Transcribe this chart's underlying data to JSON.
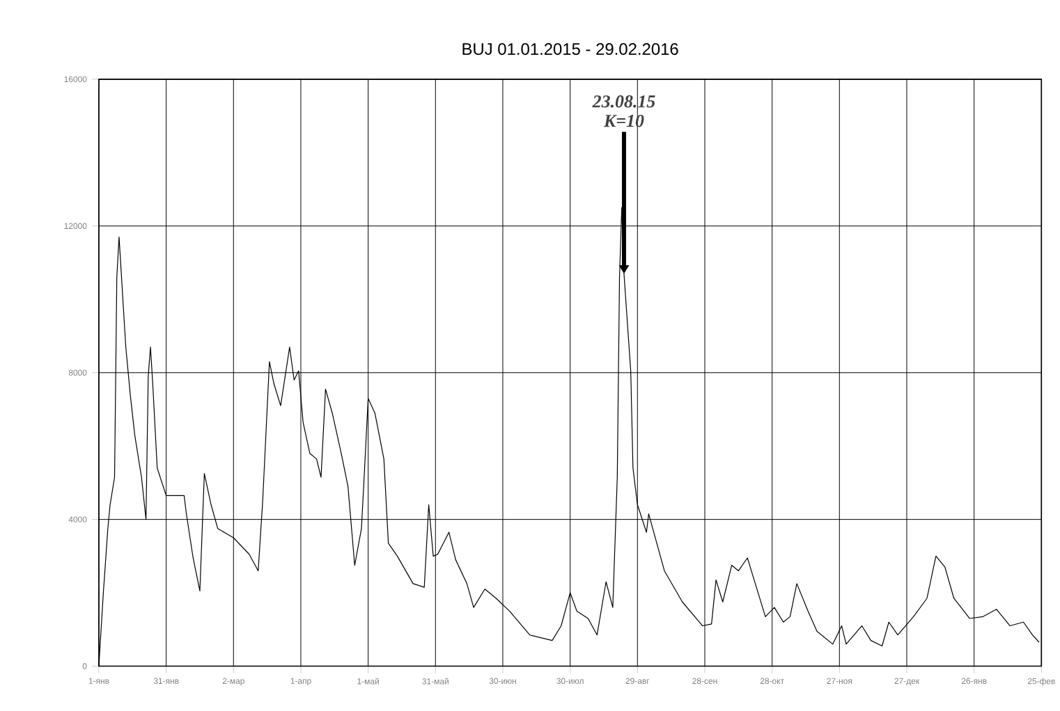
{
  "chart_data": {
    "type": "line",
    "title": "BUJ    01.01.2015 - 29.02.2016",
    "x": [
      "2015-01-01",
      "2015-01-03",
      "2015-01-05",
      "2015-01-06",
      "2015-01-08",
      "2015-01-09",
      "2015-01-10",
      "2015-01-11",
      "2015-01-13",
      "2015-01-15",
      "2015-01-17",
      "2015-01-20",
      "2015-01-22",
      "2015-01-23",
      "2015-01-24",
      "2015-01-25",
      "2015-01-27",
      "2015-01-31",
      "2015-02-08",
      "2015-02-09",
      "2015-02-12",
      "2015-02-15",
      "2015-02-17",
      "2015-02-20",
      "2015-02-23",
      "2015-03-02",
      "2015-03-09",
      "2015-03-13",
      "2015-03-15",
      "2015-03-18",
      "2015-03-20",
      "2015-03-23",
      "2015-03-27",
      "2015-03-29",
      "2015-03-31",
      "2015-04-02",
      "2015-04-05",
      "2015-04-08",
      "2015-04-10",
      "2015-04-12",
      "2015-04-15",
      "2015-04-19",
      "2015-04-22",
      "2015-04-25",
      "2015-04-28",
      "2015-04-29",
      "2015-05-01",
      "2015-05-04",
      "2015-05-08",
      "2015-05-10",
      "2015-05-14",
      "2015-05-21",
      "2015-05-26",
      "2015-05-28",
      "2015-05-30",
      "2015-06-01",
      "2015-06-06",
      "2015-06-09",
      "2015-06-14",
      "2015-06-17",
      "2015-06-22",
      "2015-06-27",
      "2015-07-03",
      "2015-07-12",
      "2015-07-22",
      "2015-07-26",
      "2015-07-30",
      "2015-08-02",
      "2015-08-07",
      "2015-08-11",
      "2015-08-15",
      "2015-08-18",
      "2015-08-20",
      "2015-08-21",
      "2015-08-22",
      "2015-08-23",
      "2015-08-24",
      "2015-08-26",
      "2015-08-27",
      "2015-08-29",
      "2015-09-02",
      "2015-09-03",
      "2015-09-10",
      "2015-09-18",
      "2015-09-27",
      "2015-10-01",
      "2015-10-03",
      "2015-10-06",
      "2015-10-10",
      "2015-10-13",
      "2015-10-17",
      "2015-10-20",
      "2015-10-25",
      "2015-10-29",
      "2015-11-02",
      "2015-11-05",
      "2015-11-08",
      "2015-11-13",
      "2015-11-17",
      "2015-11-24",
      "2015-11-28",
      "2015-11-30",
      "2015-12-07",
      "2015-12-11",
      "2015-12-16",
      "2015-12-19",
      "2015-12-23",
      "2015-12-30",
      "2016-01-05",
      "2016-01-09",
      "2016-01-13",
      "2016-01-17",
      "2016-01-24",
      "2016-01-30",
      "2016-02-05",
      "2016-02-11",
      "2016-02-17",
      "2016-02-21",
      "2016-02-24"
    ],
    "values": [
      0,
      2000,
      3750,
      4400,
      5150,
      10600,
      11700,
      10700,
      8700,
      7400,
      6300,
      5150,
      4000,
      7900,
      8700,
      7700,
      5400,
      4650,
      4650,
      4150,
      2950,
      2050,
      5250,
      4400,
      3750,
      3500,
      3050,
      2600,
      4500,
      8300,
      7700,
      7100,
      8700,
      7800,
      8050,
      6650,
      5800,
      5650,
      5150,
      7550,
      6900,
      5800,
      4900,
      2750,
      3750,
      4900,
      7300,
      6900,
      5650,
      3350,
      3000,
      2250,
      2150,
      4400,
      3000,
      3050,
      3650,
      2900,
      2250,
      1600,
      2100,
      1850,
      1500,
      850,
      700,
      1100,
      2000,
      1500,
      1300,
      850,
      2300,
      1600,
      5150,
      10600,
      12500,
      10700,
      9800,
      8050,
      5400,
      4400,
      3650,
      4150,
      2600,
      1750,
      1100,
      1150,
      2350,
      1750,
      2750,
      2600,
      2950,
      2350,
      1350,
      1600,
      1200,
      1350,
      2250,
      1500,
      950,
      600,
      1100,
      600,
      1100,
      700,
      550,
      1200,
      850,
      1350,
      1850,
      3000,
      2700,
      1850,
      1300,
      1350,
      1550,
      1100,
      1200,
      850,
      650
    ],
    "color": "#000000",
    "xlim": [
      "2015-01-01",
      "2016-02-25"
    ],
    "xticks": [
      {
        "value": "2015-01-01",
        "label": "1-янв"
      },
      {
        "value": "2015-01-31",
        "label": "31-янв"
      },
      {
        "value": "2015-03-02",
        "label": "2-мар"
      },
      {
        "value": "2015-04-01",
        "label": "1-апр"
      },
      {
        "value": "2015-05-01",
        "label": "1-май"
      },
      {
        "value": "2015-05-31",
        "label": "31-май"
      },
      {
        "value": "2015-06-30",
        "label": "30-июн"
      },
      {
        "value": "2015-07-30",
        "label": "30-июл"
      },
      {
        "value": "2015-08-29",
        "label": "29-авг"
      },
      {
        "value": "2015-09-28",
        "label": "28-сен"
      },
      {
        "value": "2015-10-28",
        "label": "28-окт"
      },
      {
        "value": "2015-11-27",
        "label": "27-ноя"
      },
      {
        "value": "2015-12-27",
        "label": "27-дек"
      },
      {
        "value": "2016-01-26",
        "label": "26-янв"
      },
      {
        "value": "2016-02-25",
        "label": "25-фев"
      }
    ],
    "ylim": [
      0,
      16000
    ],
    "yticks": [
      0,
      4000,
      8000,
      12000,
      16000
    ],
    "grid": true,
    "annotations": [
      {
        "text": "23.08.15 K=10",
        "x": "2015-08-23",
        "y": 10700
      }
    ]
  }
}
